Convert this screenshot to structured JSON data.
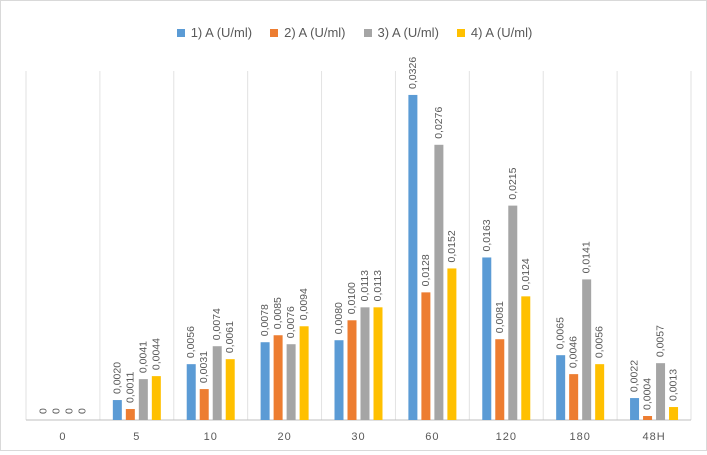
{
  "chart_data": {
    "type": "bar",
    "categories": [
      "0",
      "5",
      "10",
      "20",
      "30",
      "60",
      "120",
      "180",
      "48H"
    ],
    "series": [
      {
        "name": "1) A (U/ml)",
        "color": "#5B9BD5",
        "values": [
          0,
          0.002,
          0.0056,
          0.0078,
          0.008,
          0.0326,
          0.0163,
          0.0065,
          0.0022
        ]
      },
      {
        "name": "2) A (U/ml)",
        "color": "#ED7D31",
        "values": [
          0,
          0.0011,
          0.0031,
          0.0085,
          0.01,
          0.0128,
          0.0081,
          0.0046,
          0.0004
        ]
      },
      {
        "name": "3) A (U/ml)",
        "color": "#A5A5A5",
        "values": [
          0,
          0.0041,
          0.0074,
          0.0076,
          0.0113,
          0.0276,
          0.0215,
          0.0141,
          0.0057
        ]
      },
      {
        "name": "4) A (U/ml)",
        "color": "#FFC000",
        "values": [
          0,
          0.0044,
          0.0061,
          0.0094,
          0.0113,
          0.0152,
          0.0124,
          0.0056,
          0.0013
        ]
      }
    ],
    "data_labels": [
      [
        "0",
        "0,0020",
        "0,0056",
        "0,0078",
        "0,0080",
        "0,0326",
        "0,0163",
        "0,0065",
        "0,0022"
      ],
      [
        "0",
        "0,0011",
        "0,0031",
        "0,0085",
        "0,0100",
        "0,0128",
        "0,0081",
        "0,0046",
        "0,0004"
      ],
      [
        "0",
        "0,0041",
        "0,0074",
        "0,0076",
        "0,0113",
        "0,0276",
        "0,0215",
        "0,0141",
        "0,0057"
      ],
      [
        "0",
        "0,0044",
        "0,0061",
        "0,0094",
        "0,0113",
        "0,0152",
        "0,0124",
        "0,0056",
        "0,0013"
      ]
    ],
    "title": "",
    "xlabel": "",
    "ylabel": "",
    "ylim": [
      0,
      0.035
    ],
    "grid": "vertical category separators",
    "legend_position": "top"
  }
}
